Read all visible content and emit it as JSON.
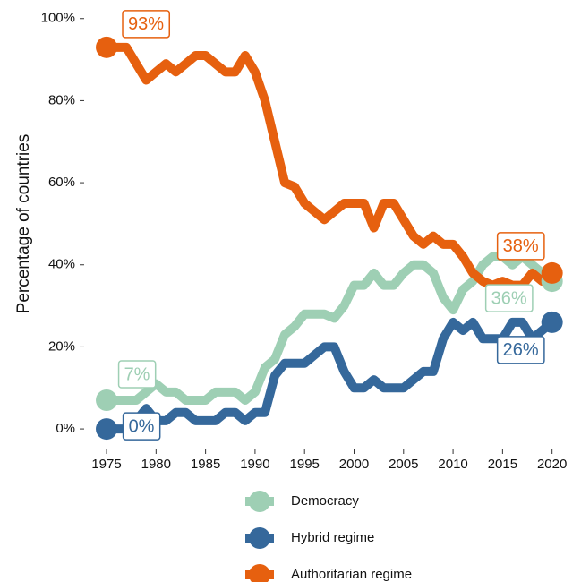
{
  "chart_data": {
    "type": "line",
    "ylabel": "Percentage of countries",
    "x": [
      1975,
      1976,
      1977,
      1978,
      1979,
      1980,
      1981,
      1982,
      1983,
      1984,
      1985,
      1986,
      1987,
      1988,
      1989,
      1990,
      1991,
      1992,
      1993,
      1994,
      1995,
      1996,
      1997,
      1998,
      1999,
      2000,
      2001,
      2002,
      2003,
      2004,
      2005,
      2006,
      2007,
      2008,
      2009,
      2010,
      2011,
      2012,
      2013,
      2014,
      2015,
      2016,
      2017,
      2018,
      2019,
      2020
    ],
    "series": [
      {
        "name": "Democracy",
        "color": "#9ecfb4",
        "values": [
          7,
          7,
          7,
          7,
          9,
          11,
          9,
          9,
          7,
          7,
          7,
          9,
          9,
          9,
          7,
          9,
          15,
          17,
          23,
          25,
          28,
          28,
          28,
          27,
          30,
          35,
          35,
          38,
          35,
          35,
          38,
          40,
          40,
          38,
          32,
          29,
          34,
          36,
          40,
          42,
          42,
          40,
          42,
          40,
          38,
          36
        ],
        "value_labels": [
          "7%",
          null,
          null,
          null,
          null,
          null,
          null,
          null,
          null,
          null,
          null,
          null,
          null,
          null,
          null,
          null,
          null,
          null,
          null,
          null,
          null,
          null,
          null,
          null,
          null,
          null,
          null,
          null,
          null,
          null,
          null,
          null,
          null,
          null,
          null,
          null,
          null,
          null,
          null,
          null,
          null,
          null,
          null,
          null,
          null,
          "36%"
        ]
      },
      {
        "name": "Hybrid regime",
        "color": "#35689b",
        "values": [
          0,
          0,
          0,
          2,
          5,
          2,
          2,
          4,
          4,
          2,
          2,
          2,
          4,
          4,
          2,
          4,
          4,
          13,
          16,
          16,
          16,
          18,
          20,
          20,
          14,
          10,
          10,
          12,
          10,
          10,
          10,
          12,
          14,
          14,
          22,
          26,
          24,
          26,
          22,
          22,
          22,
          26,
          26,
          22,
          24,
          26
        ],
        "value_labels": [
          "0%",
          null,
          null,
          null,
          null,
          null,
          null,
          null,
          null,
          null,
          null,
          null,
          null,
          null,
          null,
          null,
          null,
          null,
          null,
          null,
          null,
          null,
          null,
          null,
          null,
          null,
          null,
          null,
          null,
          null,
          null,
          null,
          null,
          null,
          null,
          null,
          null,
          null,
          null,
          null,
          null,
          null,
          null,
          null,
          null,
          "26%"
        ]
      },
      {
        "name": "Authoritarian regime",
        "color": "#e6600f",
        "values": [
          93,
          93,
          93,
          89,
          85,
          87,
          89,
          87,
          89,
          91,
          91,
          89,
          87,
          87,
          91,
          87,
          80,
          70,
          60,
          59,
          55,
          53,
          51,
          53,
          55,
          55,
          55,
          49,
          55,
          55,
          51,
          47,
          45,
          47,
          45,
          45,
          42,
          38,
          36,
          35,
          36,
          35,
          35,
          38,
          36,
          38
        ],
        "value_labels": [
          "93%",
          null,
          null,
          null,
          null,
          null,
          null,
          null,
          null,
          null,
          null,
          null,
          null,
          null,
          null,
          null,
          null,
          null,
          null,
          null,
          null,
          null,
          null,
          null,
          null,
          null,
          null,
          null,
          null,
          null,
          null,
          null,
          null,
          null,
          null,
          null,
          null,
          null,
          null,
          null,
          null,
          null,
          null,
          null,
          null,
          "38%"
        ]
      }
    ],
    "xlim": [
      1972.8,
      2022.2
    ],
    "xticks": [
      1975,
      1980,
      1985,
      1990,
      1995,
      2000,
      2005,
      2010,
      2015,
      2020
    ],
    "ylim": [
      -5,
      103
    ],
    "yticks": [
      {
        "value": 0,
        "label": "0%"
      },
      {
        "value": 20,
        "label": "20%"
      },
      {
        "value": 40,
        "label": "40%"
      },
      {
        "value": 60,
        "label": "60%"
      },
      {
        "value": 80,
        "label": "80%"
      },
      {
        "value": 100,
        "label": "100%"
      }
    ],
    "grid": false,
    "legend": "bottom"
  }
}
